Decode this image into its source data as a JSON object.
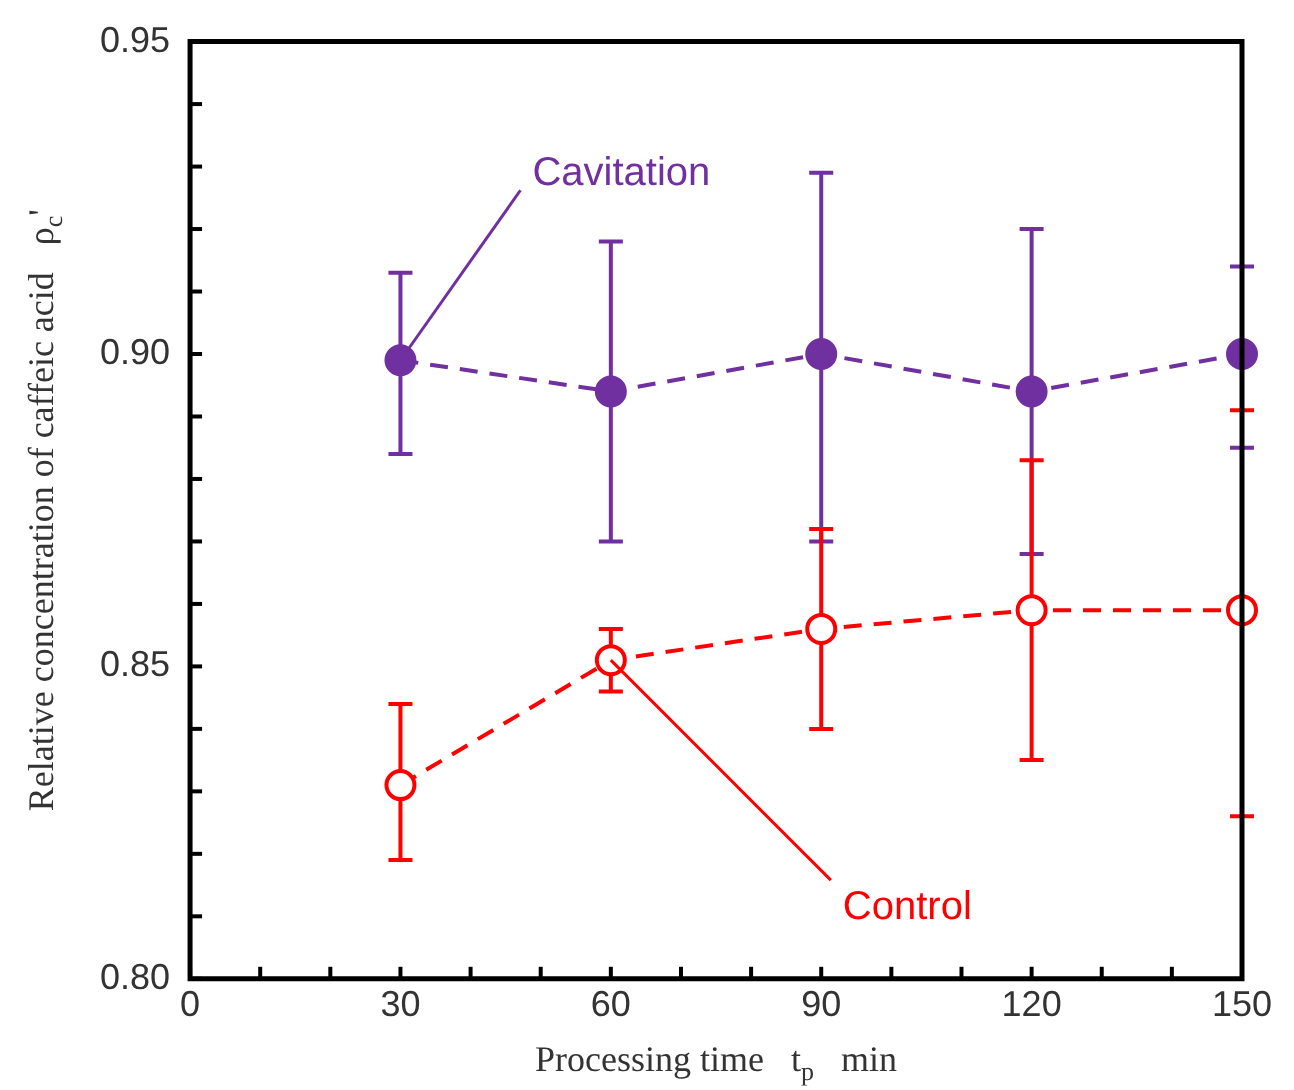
{
  "chart_data": {
    "type": "line",
    "xlabel": "Processing time   t$_{p}$   min",
    "ylabel": "Relative concentration of caffeic acid   ρ$_{c}$'",
    "x": [
      30,
      60,
      90,
      120,
      150
    ],
    "series": [
      {
        "name": "Cavitation",
        "color": "#7030a0",
        "values": [
          0.899,
          0.894,
          0.9,
          0.894,
          0.9
        ],
        "errors": [
          [
            0.884,
            0.913
          ],
          [
            0.87,
            0.918
          ],
          [
            0.87,
            0.929
          ],
          [
            0.868,
            0.92
          ],
          [
            0.885,
            0.914
          ]
        ]
      },
      {
        "name": "Control",
        "color": "#ff0000",
        "values": [
          0.831,
          0.851,
          0.856,
          0.859,
          0.859
        ],
        "errors": [
          [
            0.819,
            0.844
          ],
          [
            0.846,
            0.856
          ],
          [
            0.84,
            0.872
          ],
          [
            0.835,
            0.883
          ],
          [
            0.826,
            0.891
          ]
        ]
      }
    ],
    "xlim": [
      0,
      150
    ],
    "xticks": [
      0,
      {
        "value": 10,
        "label": null
      },
      {
        "value": 20,
        "label": null
      },
      30,
      {
        "value": 40,
        "label": null
      },
      {
        "value": 50,
        "label": null
      },
      60,
      {
        "value": 70,
        "label": null
      },
      {
        "value": 80,
        "label": null
      },
      90,
      {
        "value": 100,
        "label": null
      },
      {
        "value": 110,
        "label": null
      },
      120,
      {
        "value": 130,
        "label": null
      },
      {
        "value": 140,
        "label": null
      },
      150
    ],
    "ylim": [
      0.8,
      0.95
    ],
    "yticks": [
      {
        "value": 0.8,
        "label": "0.80"
      },
      {
        "value": 0.81,
        "label": null
      },
      {
        "value": 0.82,
        "label": null
      },
      {
        "value": 0.83,
        "label": null
      },
      {
        "value": 0.84,
        "label": null
      },
      {
        "value": 0.85,
        "label": "0.85"
      },
      {
        "value": 0.86,
        "label": null
      },
      {
        "value": 0.87,
        "label": null
      },
      {
        "value": 0.88,
        "label": null
      },
      {
        "value": 0.89,
        "label": null
      },
      {
        "value": 0.9,
        "label": "0.90"
      },
      {
        "value": 0.91,
        "label": null
      },
      {
        "value": 0.92,
        "label": null
      },
      {
        "value": 0.93,
        "label": null
      },
      {
        "value": 0.94,
        "label": null
      },
      {
        "value": 0.95,
        "label": "0.95"
      }
    ],
    "grid": false,
    "legend": false,
    "marker": "circle",
    "line_style": "dashed"
  }
}
